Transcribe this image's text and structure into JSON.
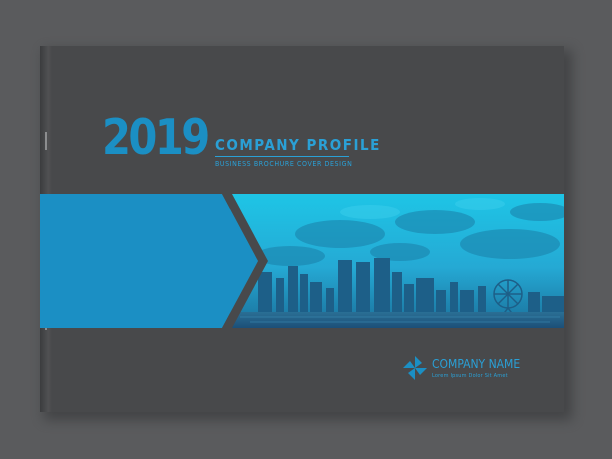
{
  "cover": {
    "year": "2019",
    "title": "COMPANY PROFILE",
    "subtitle": "BUSINESS BROCHURE COVER DESIGN",
    "company_name": "COMPANY NAME",
    "company_tagline": "Lorem Ipsum Dolor Sit Amet"
  },
  "colors": {
    "background": "#5a5b5d",
    "cover": "#48494b",
    "accent_blue": "#1b8fc4",
    "photo_tint": "#1fb3d9"
  },
  "icons": {
    "logo": "pinwheel-logo-icon"
  }
}
